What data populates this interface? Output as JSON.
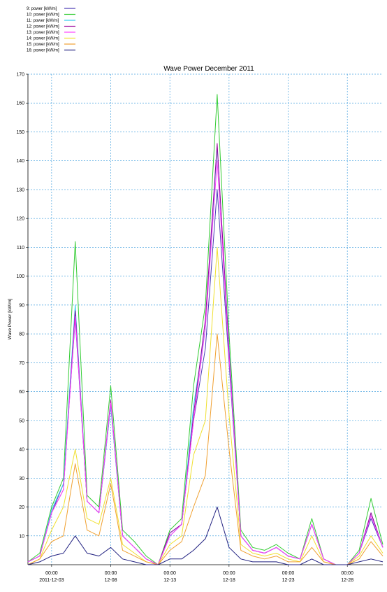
{
  "chart_data": {
    "type": "line",
    "title": "Wave Power December 2011",
    "xlabel": "",
    "ylabel": "Wave Power [kW/m]",
    "ylim": [
      0,
      170
    ],
    "yticks": [
      10,
      20,
      30,
      40,
      50,
      60,
      70,
      80,
      90,
      100,
      110,
      120,
      130,
      140,
      150,
      160,
      170
    ],
    "x_range_days": [
      "2011-12-01 00:00",
      "2011-12-31 00:00"
    ],
    "xticks": [
      {
        "time": "00:00",
        "date": "2011-12-03"
      },
      {
        "time": "00:00",
        "date": "12-08"
      },
      {
        "time": "00:00",
        "date": "12-13"
      },
      {
        "time": "00:00",
        "date": "12-18"
      },
      {
        "time": "00:00",
        "date": "12-23"
      },
      {
        "time": "00:00",
        "date": "12-28"
      }
    ],
    "grid": true,
    "legend_position": "top-left",
    "x_dates": [
      "12-01",
      "12-02",
      "12-03",
      "12-04",
      "12-05",
      "12-06",
      "12-07",
      "12-08",
      "12-09",
      "12-10",
      "12-11",
      "12-12",
      "12-13",
      "12-14",
      "12-15",
      "12-16",
      "12-17",
      "12-18",
      "12-19",
      "12-20",
      "12-21",
      "12-22",
      "12-23",
      "12-24",
      "12-25",
      "12-26",
      "12-27",
      "12-28",
      "12-29",
      "12-30",
      "12-31"
    ],
    "series": [
      {
        "name": "9: power  [kW/m]",
        "color": "#4b3bb5",
        "values": [
          1,
          3,
          18,
          28,
          85,
          22,
          18,
          55,
          10,
          6,
          2,
          0,
          10,
          14,
          50,
          75,
          130,
          70,
          10,
          5,
          4,
          6,
          3,
          2,
          14,
          2,
          0,
          0,
          4,
          16,
          6
        ]
      },
      {
        "name": "10: power  [kW/m]",
        "color": "#33cc33",
        "values": [
          1,
          4,
          20,
          30,
          112,
          24,
          20,
          62,
          12,
          8,
          3,
          0,
          12,
          16,
          62,
          90,
          163,
          80,
          12,
          6,
          5,
          7,
          4,
          2,
          16,
          2,
          0,
          0,
          5,
          23,
          7
        ]
      },
      {
        "name": "11: power  [kW/m]",
        "color": "#33ccee",
        "values": [
          1,
          3,
          19,
          28,
          90,
          22,
          18,
          55,
          10,
          6,
          2,
          0,
          11,
          14,
          55,
          82,
          145,
          75,
          10,
          5,
          4,
          6,
          3,
          2,
          14,
          2,
          0,
          0,
          4,
          18,
          6
        ]
      },
      {
        "name": "12: power  [kW/m]",
        "color": "#990099",
        "values": [
          1,
          3,
          18,
          26,
          88,
          22,
          18,
          57,
          10,
          6,
          2,
          0,
          11,
          14,
          52,
          85,
          146,
          74,
          10,
          5,
          4,
          6,
          3,
          2,
          14,
          2,
          0,
          0,
          4,
          18,
          6
        ]
      },
      {
        "name": "13: power  [kW/m]",
        "color": "#ff44ff",
        "values": [
          1,
          3,
          18,
          26,
          86,
          22,
          18,
          56,
          10,
          6,
          2,
          0,
          10,
          14,
          50,
          82,
          140,
          72,
          10,
          5,
          4,
          6,
          3,
          2,
          14,
          2,
          0,
          0,
          4,
          17,
          6
        ]
      },
      {
        "name": "14: power  [kW/m]",
        "color": "#f0e030",
        "values": [
          0,
          2,
          12,
          20,
          40,
          16,
          14,
          30,
          7,
          4,
          1,
          0,
          7,
          10,
          38,
          50,
          110,
          52,
          7,
          4,
          3,
          4,
          2,
          1,
          10,
          1,
          0,
          0,
          3,
          10,
          4
        ]
      },
      {
        "name": "15: power  [kW/m]",
        "color": "#f0a030",
        "values": [
          0,
          2,
          8,
          10,
          35,
          12,
          10,
          28,
          5,
          3,
          1,
          0,
          5,
          8,
          20,
          31,
          80,
          40,
          5,
          3,
          2,
          3,
          1,
          1,
          6,
          1,
          0,
          0,
          2,
          8,
          3
        ]
      },
      {
        "name": "16: power  [kW/m]",
        "color": "#202080",
        "values": [
          0,
          1,
          3,
          4,
          10,
          4,
          3,
          6,
          2,
          1,
          0,
          0,
          2,
          2,
          5,
          9,
          20,
          6,
          2,
          1,
          1,
          1,
          0,
          0,
          2,
          0,
          0,
          0,
          1,
          2,
          1
        ]
      }
    ]
  }
}
